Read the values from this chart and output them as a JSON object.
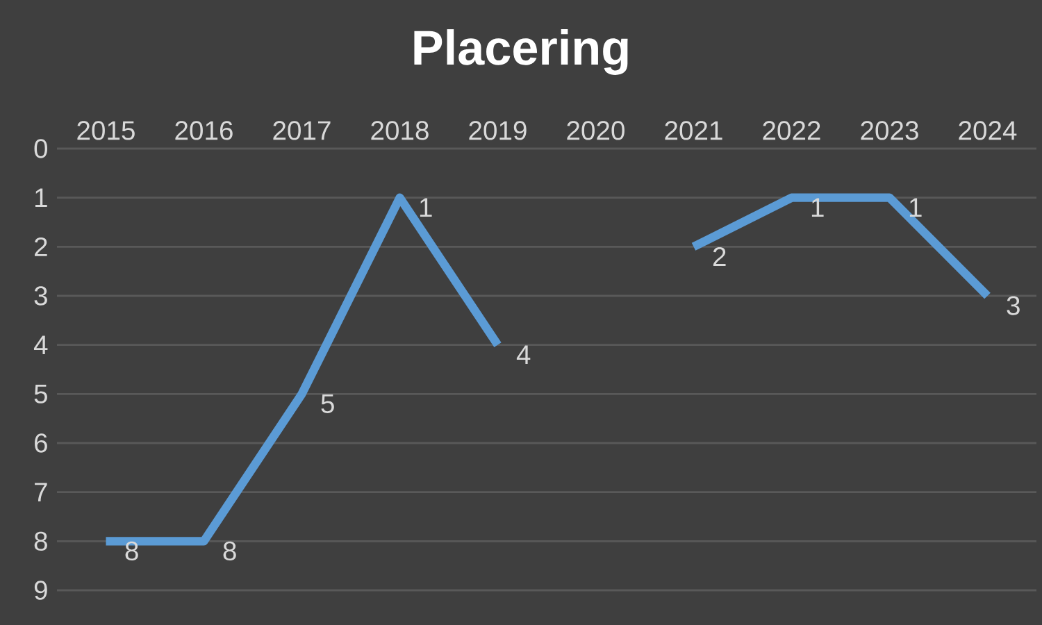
{
  "chart_data": {
    "type": "line",
    "title": "Placering",
    "categories": [
      "2015",
      "2016",
      "2017",
      "2018",
      "2019",
      "2020",
      "2021",
      "2022",
      "2023",
      "2024"
    ],
    "values": [
      8,
      8,
      5,
      1,
      4,
      null,
      2,
      1,
      1,
      3
    ],
    "color": "#5b9bd5",
    "ylim": [
      9,
      0
    ],
    "yticks": [
      0,
      1,
      2,
      3,
      4,
      5,
      6,
      7,
      8,
      9
    ],
    "grid": "y",
    "data_labels": true,
    "marker": "none",
    "line_style": "solid"
  }
}
